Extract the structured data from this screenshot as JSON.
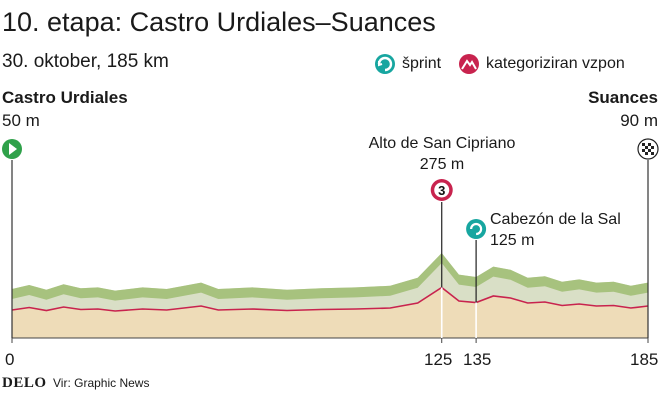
{
  "header": {
    "title": "10. etapa: Castro Urdiales–Suances",
    "subtitle": "30. oktober, 185 km"
  },
  "legend": {
    "sprint_label": "šprint",
    "climb_label": "kategoriziran vzpon"
  },
  "start": {
    "name": "Castro Urdiales",
    "altitude": "50 m",
    "km": "0"
  },
  "finish": {
    "name": "Suances",
    "altitude": "90 m",
    "km": "185"
  },
  "climb": {
    "name": "Alto de San Cipriano",
    "altitude": "275 m",
    "category": "3",
    "km": "125"
  },
  "sprint": {
    "name": "Cabezón de la Sal",
    "altitude": "125 m",
    "km": "135"
  },
  "footer": {
    "brand": "DELO",
    "source": "Vir: Graphic News"
  },
  "colors": {
    "start_marker": "#2fa14a",
    "climb_marker": "#c8234e",
    "sprint_marker": "#17a6a0",
    "terrain_top": "#a7c27e",
    "terrain_face": "#d9dfc6",
    "profile_fill": "#eedcb8",
    "profile_line": "#c8234e"
  },
  "chart_data": {
    "type": "area",
    "x_unit": "km",
    "distance_km": 185,
    "xlim": [
      0,
      185
    ],
    "x_ticks": [
      0,
      125,
      135,
      185
    ],
    "profile": [
      {
        "km": 0,
        "alt": 50
      },
      {
        "km": 5,
        "alt": 75
      },
      {
        "km": 10,
        "alt": 45
      },
      {
        "km": 15,
        "alt": 80
      },
      {
        "km": 20,
        "alt": 55
      },
      {
        "km": 25,
        "alt": 60
      },
      {
        "km": 30,
        "alt": 40
      },
      {
        "km": 38,
        "alt": 60
      },
      {
        "km": 45,
        "alt": 50
      },
      {
        "km": 55,
        "alt": 90
      },
      {
        "km": 60,
        "alt": 50
      },
      {
        "km": 70,
        "alt": 60
      },
      {
        "km": 80,
        "alt": 45
      },
      {
        "km": 90,
        "alt": 55
      },
      {
        "km": 100,
        "alt": 60
      },
      {
        "km": 110,
        "alt": 70
      },
      {
        "km": 118,
        "alt": 120
      },
      {
        "km": 125,
        "alt": 275
      },
      {
        "km": 130,
        "alt": 140
      },
      {
        "km": 135,
        "alt": 125
      },
      {
        "km": 140,
        "alt": 190
      },
      {
        "km": 145,
        "alt": 170
      },
      {
        "km": 150,
        "alt": 120
      },
      {
        "km": 155,
        "alt": 130
      },
      {
        "km": 160,
        "alt": 95
      },
      {
        "km": 165,
        "alt": 110
      },
      {
        "km": 170,
        "alt": 90
      },
      {
        "km": 175,
        "alt": 95
      },
      {
        "km": 180,
        "alt": 70
      },
      {
        "km": 185,
        "alt": 90
      }
    ]
  }
}
